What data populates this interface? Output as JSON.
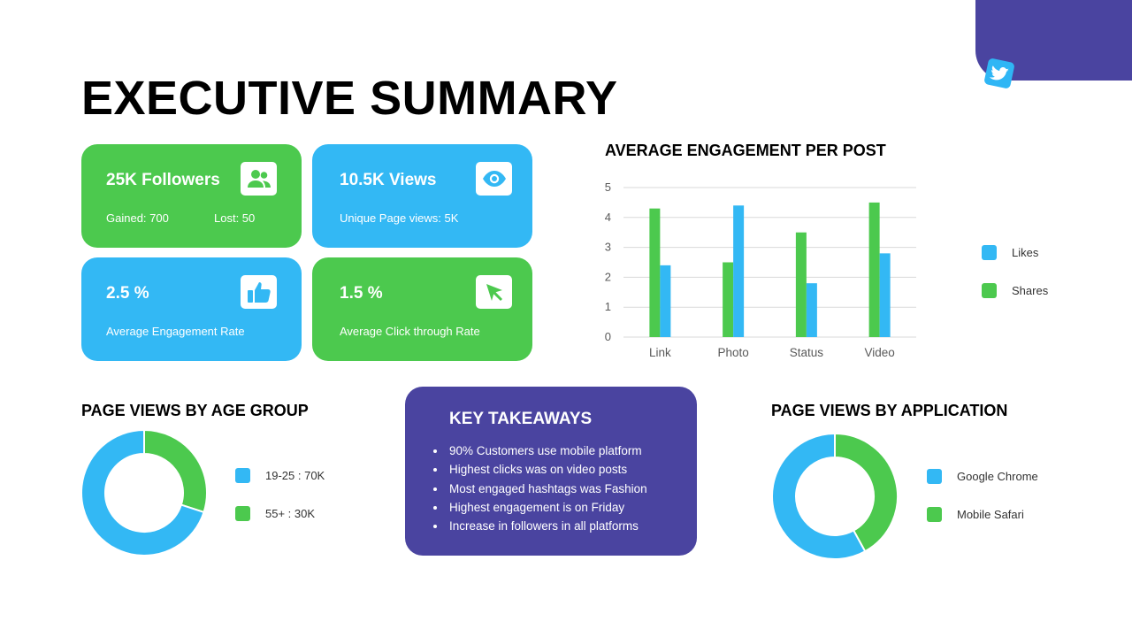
{
  "title": "EXECUTIVE SUMMARY",
  "brand_icon": "twitter-bird-icon",
  "colors": {
    "purple": "#4a44a0",
    "green": "#4cc94e",
    "blue": "#33b8f4"
  },
  "cards": {
    "followers": {
      "title": "25K Followers",
      "gained": "Gained: 700",
      "lost": "Lost: 50",
      "icon": "users-icon"
    },
    "views": {
      "title": "10.5K Views",
      "sub": "Unique Page views: 5K",
      "icon": "eye-icon"
    },
    "engagement": {
      "title": "2.5 %",
      "sub": "Average Engagement Rate",
      "icon": "thumbs-up-icon"
    },
    "click": {
      "title": "1.5 %",
      "sub": "Average Click through Rate",
      "icon": "cursor-icon"
    }
  },
  "bar_section": {
    "title": "AVERAGE ENGAGEMENT PER POST"
  },
  "age_section": {
    "title": "PAGE VIEWS BY AGE GROUP"
  },
  "app_section": {
    "title": "PAGE VIEWS BY APPLICATION"
  },
  "takeaways": {
    "title": "KEY TAKEAWAYS",
    "items": [
      "90% Customers use mobile platform",
      "Highest clicks was on video posts",
      "Most engaged hashtags was Fashion",
      "Highest engagement is on Friday",
      "Increase in followers in all platforms"
    ]
  },
  "chart_data": [
    {
      "type": "bar",
      "title": "AVERAGE ENGAGEMENT PER POST",
      "categories": [
        "Link",
        "Photo",
        "Status",
        "Video"
      ],
      "series": [
        {
          "name": "Shares",
          "color": "#4cc94e",
          "values": [
            4.3,
            2.5,
            3.5,
            4.5
          ]
        },
        {
          "name": "Likes",
          "color": "#33b8f4",
          "values": [
            2.4,
            4.4,
            1.8,
            2.8
          ]
        }
      ],
      "legend_order": [
        "Likes",
        "Shares"
      ],
      "ylim": [
        0,
        5
      ],
      "yticks": [
        "0",
        "1",
        "2",
        "3",
        "4",
        "5"
      ],
      "grid": true,
      "legend_position": "right"
    },
    {
      "type": "pie",
      "title": "PAGE VIEWS BY AGE GROUP",
      "donut": true,
      "labels": [
        "19-25 : 70K",
        "55+ : 30K"
      ],
      "values": [
        70,
        30
      ],
      "colors": [
        "#33b8f4",
        "#4cc94e"
      ],
      "legend_position": "right"
    },
    {
      "type": "pie",
      "title": "PAGE VIEWS BY APPLICATION",
      "donut": true,
      "labels": [
        "Google Chrome",
        "Mobile Safari"
      ],
      "values": [
        58,
        42
      ],
      "colors": [
        "#33b8f4",
        "#4cc94e"
      ],
      "legend_position": "right"
    }
  ]
}
